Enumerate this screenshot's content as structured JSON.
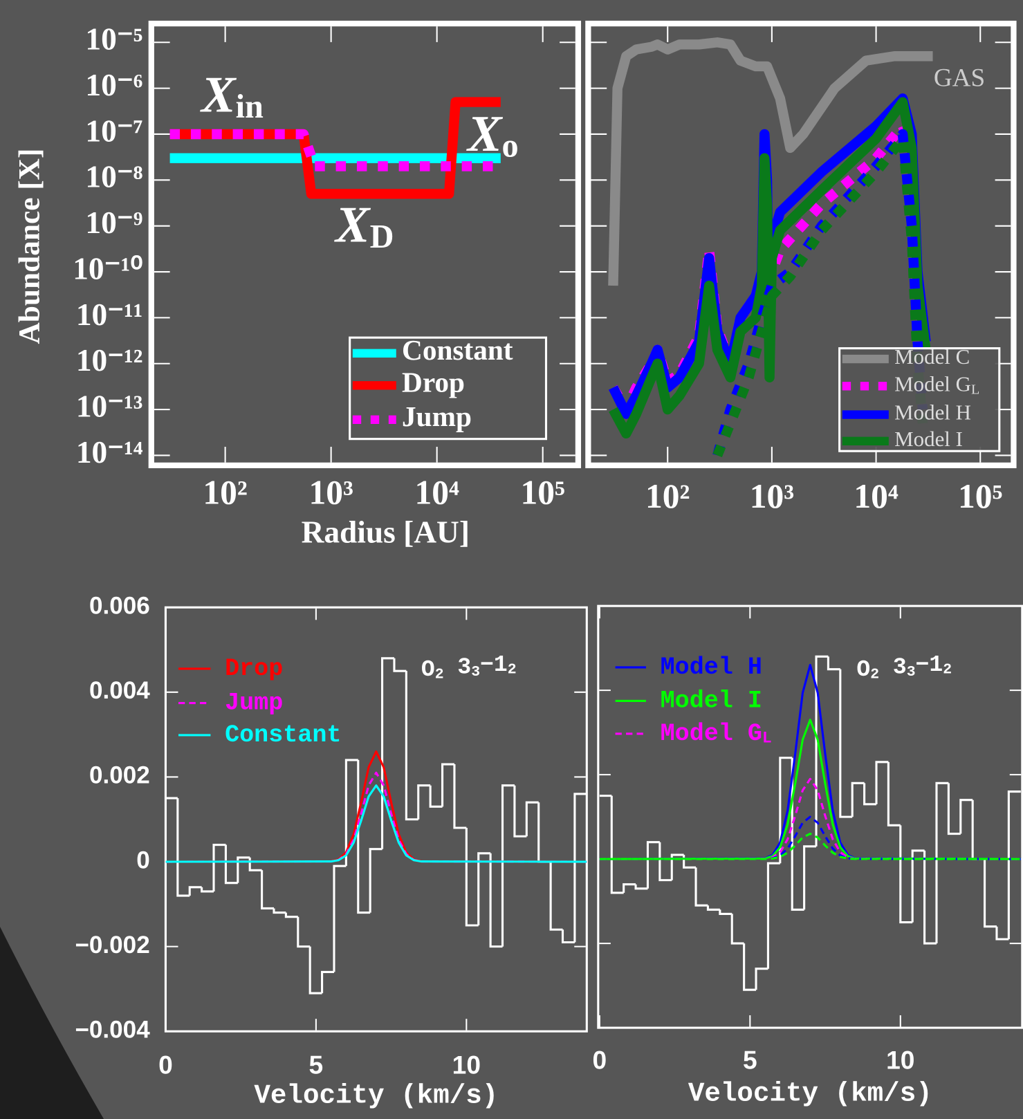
{
  "chart_data": [
    {
      "type": "line",
      "xlabel": "Radius [AU]",
      "ylabel": "Abundance [X]",
      "xlog": true,
      "ylog": true,
      "xlim": [
        22,
        200000
      ],
      "ylim": [
        7e-15,
        2e-05
      ],
      "xticks": [
        {
          "value": 100,
          "label": "10²"
        },
        {
          "value": 1000,
          "label": "10³"
        },
        {
          "value": 10000,
          "label": "10⁴"
        },
        {
          "value": 100000,
          "label": "10⁵"
        }
      ],
      "yticks": [
        {
          "value": 1e-05,
          "label": "10⁻⁵"
        },
        {
          "value": 1e-06,
          "label": "10⁻⁶"
        },
        {
          "value": 1e-07,
          "label": "10⁻⁷"
        },
        {
          "value": 1e-08,
          "label": "10⁻⁸"
        },
        {
          "value": 1e-09,
          "label": "10⁻⁹"
        },
        {
          "value": 1e-10,
          "label": "10⁻¹⁰"
        },
        {
          "value": 1e-11,
          "label": "10⁻¹¹"
        },
        {
          "value": 1e-12,
          "label": "10⁻¹²"
        },
        {
          "value": 1e-13,
          "label": "10⁻¹³"
        },
        {
          "value": 1e-14,
          "label": "10⁻¹⁴"
        }
      ],
      "annotations": [
        [
          "X",
          "in"
        ],
        [
          "X",
          "o"
        ],
        [
          "X",
          "D"
        ]
      ],
      "series": [
        {
          "name": "Constant",
          "color": "#00ffff",
          "x": [
            30,
            40000
          ],
          "values": [
            3e-08,
            3e-08
          ]
        },
        {
          "name": "Drop",
          "color": "#ff0000",
          "x": [
            30,
            550,
            650,
            13000,
            15000,
            40000
          ],
          "values": [
            1e-07,
            1e-07,
            5e-09,
            5e-09,
            5e-07,
            5e-07
          ]
        },
        {
          "name": "Jump",
          "color": "#ff00ff",
          "style": "dotted",
          "x": [
            30,
            550,
            700,
            40000
          ],
          "values": [
            1e-07,
            1e-07,
            2e-08,
            2e-08
          ]
        }
      ]
    },
    {
      "type": "line",
      "xlog": true,
      "ylog": true,
      "show_ytick_labels": false,
      "xlim": [
        19,
        190000
      ],
      "ylim": [
        7e-15,
        2e-05
      ],
      "xticks": [
        {
          "value": 100,
          "label": "10²"
        },
        {
          "value": 1000,
          "label": "10³"
        },
        {
          "value": 10000,
          "label": "10⁴"
        },
        {
          "value": 100000,
          "label": "10⁵"
        }
      ],
      "yticks": [
        1e-05,
        1e-06,
        1e-07,
        1e-08,
        1e-09,
        1e-10,
        1e-11,
        1e-12,
        1e-13,
        1e-14
      ],
      "annotations": [
        [
          "GAS"
        ]
      ],
      "series": [
        {
          "name": "Model C",
          "color": "#8a8a8a",
          "x": [
            30,
            33,
            40,
            50,
            70,
            80,
            100,
            130,
            200,
            300,
            400,
            500,
            700,
            900,
            1200,
            1500,
            2000,
            4000,
            8000,
            15000,
            35000
          ],
          "values": [
            5e-11,
            1e-06,
            5e-06,
            7e-06,
            8e-06,
            9e-06,
            7e-06,
            9e-06,
            9e-06,
            1e-05,
            9e-06,
            4e-06,
            3e-06,
            3e-06,
            6e-07,
            5e-08,
            1e-07,
            1e-06,
            4e-06,
            5e-06,
            5e-06
          ]
        },
        {
          "name": "Model G",
          "name_sub": "L",
          "color": "#ff00ff",
          "style": "dotted",
          "x": [
            30,
            40,
            50,
            70,
            80,
            100,
            130,
            200,
            250,
            300,
            400,
            500,
            700,
            800,
            850,
            900,
            950,
            1000,
            1200,
            3000,
            10000,
            18000,
            22000,
            25000,
            30000
          ],
          "values": [
            3e-13,
            1e-13,
            3e-13,
            1e-12,
            2e-12,
            4e-13,
            6e-13,
            4e-12,
            3e-10,
            6e-12,
            1e-12,
            1e-11,
            3e-11,
            1e-10,
            3e-11,
            5e-11,
            5e-11,
            1e-10,
            3e-10,
            3e-09,
            3e-08,
            1.5e-07,
            5e-08,
            5e-11,
            2e-12
          ]
        },
        {
          "name": "Model H",
          "color": "#0000ff",
          "x": [
            30,
            40,
            50,
            70,
            80,
            100,
            130,
            200,
            250,
            300,
            400,
            500,
            700,
            800,
            850,
            900,
            950,
            1000,
            1200,
            3000,
            10000,
            18000,
            22000,
            25000,
            30000
          ],
          "values": [
            3e-13,
            8e-14,
            2e-13,
            1e-12,
            2e-12,
            3e-13,
            5e-13,
            3e-12,
            2e-10,
            5e-12,
            1e-12,
            1e-11,
            3e-11,
            1e-10,
            1e-07,
            1e-08,
            1e-12,
            5e-10,
            2e-09,
            1.5e-08,
            1.5e-07,
            6e-07,
            1e-07,
            1e-10,
            3e-12
          ]
        },
        {
          "name": "Model I",
          "color": "#0a7a1a",
          "x": [
            30,
            40,
            50,
            70,
            80,
            100,
            130,
            200,
            250,
            300,
            400,
            500,
            700,
            800,
            850,
            900,
            950,
            1000,
            1200,
            3000,
            10000,
            18000,
            22000,
            25000,
            30000
          ],
          "values": [
            1e-13,
            3e-14,
            8e-14,
            5e-13,
            1e-12,
            1e-13,
            2e-13,
            1e-12,
            5e-11,
            2e-12,
            5e-13,
            5e-12,
            1e-11,
            5e-11,
            3e-08,
            3e-09,
            5e-13,
            2e-10,
            8e-10,
            6e-09,
            8e-08,
            5e-07,
            5e-08,
            5e-11,
            2e-12
          ]
        },
        {
          "color": "#0000ff",
          "style": "dotted",
          "x": [
            300,
            400,
            600,
            800,
            1000,
            1500,
            3000,
            10000,
            18000,
            22000,
            25000,
            28000
          ],
          "values": [
            1e-14,
            1e-13,
            1e-12,
            1e-11,
            5e-11,
            1e-10,
            1e-09,
            2e-08,
            1e-07,
            1e-09,
            3e-12,
            1e-13
          ]
        },
        {
          "color": "#0a7a1a",
          "style": "dotted",
          "x": [
            300,
            400,
            600,
            800,
            1000,
            1500,
            3000,
            10000,
            18000,
            22000,
            25000,
            28000
          ],
          "values": [
            1e-14,
            5e-14,
            5e-13,
            5e-12,
            3e-11,
            8e-11,
            8e-10,
            1.5e-08,
            8e-08,
            5e-10,
            1e-12,
            5e-14
          ]
        }
      ]
    },
    {
      "type": "line",
      "xlabel": "Velocity (km/s)",
      "xlim": [
        0,
        14
      ],
      "ylim": [
        -0.004,
        0.006
      ],
      "xticks": [
        0,
        5,
        10
      ],
      "yticks": [
        {
          "value": -0.004,
          "label": "−0.004"
        },
        {
          "value": -0.002,
          "label": "−0.002"
        },
        0,
        0.002,
        0.004,
        0.006
      ],
      "annotations": [
        [
          "O",
          "2",
          " 3",
          "3",
          "−1",
          "2"
        ]
      ],
      "series": [
        {
          "name": "Drop",
          "color": "#ff0000",
          "x": [
            0,
            5.5,
            5.75,
            6,
            6.25,
            6.5,
            6.75,
            7,
            7.25,
            7.5,
            7.75,
            8,
            8.25,
            8.5,
            14
          ],
          "values": [
            0,
            1e-05,
            5.5e-05,
            0.00022,
            0.00065,
            0.0014,
            0.00223,
            0.0026,
            0.00223,
            0.0014,
            0.00065,
            0.00022,
            5.5e-05,
            1e-05,
            0
          ]
        },
        {
          "name": "Jump",
          "color": "#ff00ff",
          "style": "dashed",
          "x": [
            0,
            5.5,
            5.75,
            6,
            6.25,
            6.5,
            6.75,
            7,
            7.25,
            7.5,
            7.75,
            8,
            8.25,
            8.5,
            14
          ],
          "values": [
            0,
            8e-06,
            4.4e-05,
            0.00018,
            0.00052,
            0.00113,
            0.0018,
            0.0021,
            0.0018,
            0.00113,
            0.00052,
            0.00018,
            4.4e-05,
            8e-06,
            0
          ]
        },
        {
          "name": "Constant",
          "color": "#00ffff",
          "x": [
            0,
            5.5,
            5.75,
            6,
            6.25,
            6.5,
            6.75,
            7,
            7.25,
            7.5,
            7.75,
            8,
            8.25,
            8.5,
            14
          ],
          "values": [
            0,
            7e-06,
            3.8e-05,
            0.00015,
            0.00045,
            0.00097,
            0.00154,
            0.0018,
            0.00154,
            0.00097,
            0.00045,
            0.00015,
            3.8e-05,
            7e-06,
            0
          ]
        },
        {
          "color": "#ffffff",
          "step": true,
          "x": [
            0.2,
            0.6,
            1,
            1.4,
            1.8,
            2.2,
            2.6,
            3,
            3.4,
            3.8,
            4.2,
            4.6,
            5,
            5.4,
            5.8,
            6.2,
            6.6,
            7,
            7.4,
            7.8,
            8.2,
            8.6,
            9,
            9.4,
            9.8,
            10.2,
            10.6,
            11,
            11.4,
            11.8,
            12.2,
            12.6,
            13,
            13.4,
            13.8
          ],
          "values": [
            0.0015,
            -0.0008,
            -0.0006,
            -0.0007,
            0.0004,
            -0.0005,
            0.0001,
            -0.0002,
            -0.0011,
            -0.0012,
            -0.0013,
            -0.002,
            -0.0031,
            -0.0026,
            -0.0001,
            0.0024,
            -0.0012,
            0.0003,
            0.0048,
            0.0045,
            0.001,
            0.0018,
            0.0013,
            0.0023,
            0.0008,
            -0.0015,
            0.0002,
            -0.002,
            0.0018,
            0.0006,
            0.0014,
            0,
            -0.0016,
            -0.0019,
            0.0016
          ]
        }
      ]
    },
    {
      "type": "line",
      "xlabel": "Velocity (km/s)",
      "show_ytick_labels": false,
      "xlim": [
        0,
        14
      ],
      "ylim": [
        -0.004,
        0.006
      ],
      "xticks": [
        0,
        5,
        10
      ],
      "yticks": [
        -0.004,
        -0.002,
        0,
        0.002,
        0.004,
        0.006
      ],
      "annotations": [
        [
          "O",
          "2",
          " 3",
          "3",
          "−1",
          "2"
        ]
      ],
      "series": [
        {
          "name": "Model H",
          "color": "#0000ff",
          "x": [
            0,
            5.5,
            5.75,
            6,
            6.25,
            6.5,
            6.75,
            7,
            7.25,
            7.5,
            7.75,
            8,
            8.25,
            8.5,
            14
          ],
          "values": [
            0,
            1.8e-05,
            9.7e-05,
            0.00039,
            0.00115,
            0.00248,
            0.00394,
            0.0046,
            0.00394,
            0.00248,
            0.00115,
            0.00039,
            9.7e-05,
            1.8e-05,
            0
          ]
        },
        {
          "name": "Model I",
          "color": "#00ff00",
          "x": [
            0,
            5.5,
            5.75,
            6,
            6.25,
            6.5,
            6.75,
            7,
            7.25,
            7.5,
            7.75,
            8,
            8.25,
            8.5,
            14
          ],
          "values": [
            0,
            1.3e-05,
            6.9e-05,
            0.00028,
            0.00082,
            0.00178,
            0.00283,
            0.0033,
            0.00283,
            0.00178,
            0.00082,
            0.00028,
            6.9e-05,
            1.3e-05,
            0
          ]
        },
        {
          "name": "Model G",
          "name_sub": "L",
          "color": "#ff00ff",
          "style": "dashed",
          "x": [
            0,
            5.5,
            5.75,
            6,
            6.25,
            6.5,
            6.75,
            7,
            7.25,
            7.5,
            7.75,
            8,
            8.25,
            8.5,
            14
          ],
          "values": [
            0,
            7e-06,
            4e-05,
            0.00016,
            0.00047,
            0.00102,
            0.00163,
            0.0019,
            0.00163,
            0.00102,
            0.00047,
            0.00016,
            4e-05,
            7e-06,
            0
          ]
        },
        {
          "color": "#0000ff",
          "style": "dashed",
          "x": [
            0,
            5.5,
            5.75,
            6,
            6.25,
            6.5,
            6.75,
            7,
            7.25,
            7.5,
            7.75,
            8,
            8.25,
            8.5,
            14
          ],
          "values": [
            0,
            4e-06,
            2.1e-05,
            8.5e-05,
            0.00025,
            0.00054,
            0.00086,
            0.001,
            0.00086,
            0.00054,
            0.00025,
            8.5e-05,
            2.1e-05,
            4e-06,
            0
          ]
        },
        {
          "color": "#00ff00",
          "style": "dashed",
          "x": [
            0,
            5.5,
            5.75,
            6,
            6.25,
            6.5,
            6.75,
            7,
            7.25,
            7.5,
            7.75,
            8,
            8.25,
            8.5,
            14
          ],
          "values": [
            0,
            2e-06,
            1.3e-05,
            5.1e-05,
            0.00015,
            0.00032,
            0.00051,
            0.0006,
            0.00051,
            0.00032,
            0.00015,
            5.1e-05,
            1.3e-05,
            2e-06,
            0
          ]
        },
        {
          "color": "#ffffff",
          "step": true,
          "x": [
            0.2,
            0.6,
            1,
            1.4,
            1.8,
            2.2,
            2.6,
            3,
            3.4,
            3.8,
            4.2,
            4.6,
            5,
            5.4,
            5.8,
            6.2,
            6.6,
            7,
            7.4,
            7.8,
            8.2,
            8.6,
            9,
            9.4,
            9.8,
            10.2,
            10.6,
            11,
            11.4,
            11.8,
            12.2,
            12.6,
            13,
            13.4,
            13.8
          ],
          "values": [
            0.0015,
            -0.0008,
            -0.0006,
            -0.0007,
            0.0004,
            -0.0005,
            0.0001,
            -0.0002,
            -0.0011,
            -0.0012,
            -0.0013,
            -0.002,
            -0.0031,
            -0.0026,
            -0.0001,
            0.0024,
            -0.0012,
            0.0003,
            0.0048,
            0.0045,
            0.001,
            0.0018,
            0.0013,
            0.0023,
            0.0008,
            -0.0015,
            0.0002,
            -0.002,
            0.0018,
            0.0006,
            0.0014,
            0,
            -0.0016,
            -0.0019,
            0.0016
          ]
        }
      ]
    }
  ]
}
